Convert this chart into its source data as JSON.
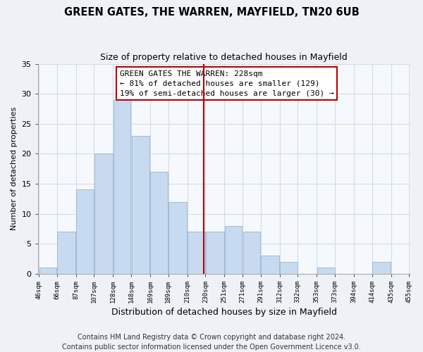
{
  "title": "GREEN GATES, THE WARREN, MAYFIELD, TN20 6UB",
  "subtitle": "Size of property relative to detached houses in Mayfield",
  "xlabel": "Distribution of detached houses by size in Mayfield",
  "ylabel": "Number of detached properties",
  "bar_color": "#c8daf0",
  "bar_edgecolor": "#a0bcd8",
  "bar_left_edges": [
    46,
    66,
    87,
    107,
    128,
    148,
    169,
    189,
    210,
    230,
    251,
    271,
    291,
    312,
    332,
    353,
    373,
    394,
    414,
    435
  ],
  "bar_widths": [
    20,
    21,
    20,
    21,
    20,
    21,
    20,
    21,
    20,
    21,
    20,
    20,
    21,
    20,
    21,
    20,
    21,
    20,
    21,
    20
  ],
  "bar_heights": [
    1,
    7,
    14,
    20,
    29,
    23,
    17,
    12,
    7,
    7,
    8,
    7,
    3,
    2,
    0,
    1,
    0,
    0,
    2,
    0
  ],
  "x_tick_labels": [
    "46sqm",
    "66sqm",
    "87sqm",
    "107sqm",
    "128sqm",
    "148sqm",
    "169sqm",
    "189sqm",
    "210sqm",
    "230sqm",
    "251sqm",
    "271sqm",
    "291sqm",
    "312sqm",
    "332sqm",
    "353sqm",
    "373sqm",
    "394sqm",
    "414sqm",
    "435sqm",
    "455sqm"
  ],
  "ylim": [
    0,
    35
  ],
  "yticks": [
    0,
    5,
    10,
    15,
    20,
    25,
    30,
    35
  ],
  "vline_x": 228,
  "vline_color": "#bb0000",
  "annotation_line1": "GREEN GATES THE WARREN: 228sqm",
  "annotation_line2": "← 81% of detached houses are smaller (129)",
  "annotation_line3": "19% of semi-detached houses are larger (30) →",
  "footer_line1": "Contains HM Land Registry data © Crown copyright and database right 2024.",
  "footer_line2": "Contains public sector information licensed under the Open Government Licence v3.0.",
  "background_color": "#eef2f7",
  "plot_background": "#f5f8fc",
  "grid_color": "#d5dde8",
  "title_fontsize": 10.5,
  "subtitle_fontsize": 9,
  "annotation_fontsize": 8,
  "xlabel_fontsize": 9,
  "ylabel_fontsize": 8,
  "footer_fontsize": 7
}
